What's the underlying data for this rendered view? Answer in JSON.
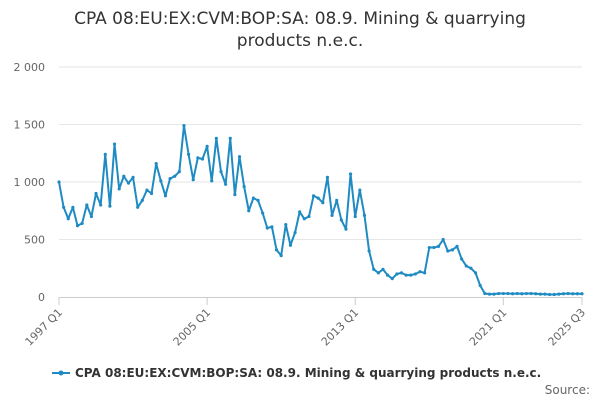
{
  "chart_data": {
    "type": "line",
    "title_lines": [
      "CPA 08:EU:EX:CVM:BOP:SA: 08.9. Mining & quarrying",
      "products n.e.c."
    ],
    "x_start": "1997 Q1",
    "x_tick_labels": [
      "1997 Q1",
      "2005 Q1",
      "2013 Q1",
      "2021 Q1",
      "2025 Q3"
    ],
    "y_tick_labels": [
      "0",
      "500",
      "1 000",
      "1 500",
      "2 000"
    ],
    "y_ticks": [
      0,
      500,
      1000,
      1500,
      2000
    ],
    "ylim": [
      0,
      2000
    ],
    "grid": true,
    "legend_position": "bottom",
    "credits": "Source:",
    "series": [
      {
        "name": "CPA 08:EU:EX:CVM:BOP:SA: 08.9. Mining & quarrying products n.e.c.",
        "color": "#1f8bc2",
        "values": [
          1000,
          780,
          680,
          780,
          620,
          640,
          800,
          700,
          900,
          800,
          1240,
          790,
          1330,
          940,
          1050,
          990,
          1040,
          780,
          840,
          930,
          900,
          1160,
          1010,
          880,
          1030,
          1050,
          1090,
          1490,
          1240,
          1020,
          1210,
          1200,
          1310,
          1010,
          1380,
          1090,
          980,
          1380,
          890,
          1220,
          960,
          750,
          860,
          840,
          730,
          600,
          610,
          410,
          360,
          630,
          450,
          560,
          740,
          680,
          700,
          880,
          860,
          820,
          1040,
          710,
          840,
          670,
          590,
          1070,
          700,
          930,
          710,
          400,
          240,
          210,
          240,
          190,
          160,
          200,
          210,
          190,
          190,
          200,
          220,
          210,
          430,
          430,
          440,
          500,
          400,
          410,
          440,
          330,
          270,
          250,
          210,
          100,
          30,
          25,
          25,
          30,
          30,
          30,
          28,
          30,
          28,
          30,
          30,
          28,
          25,
          25,
          22,
          22,
          25,
          28,
          30,
          28,
          28,
          28
        ]
      }
    ]
  }
}
